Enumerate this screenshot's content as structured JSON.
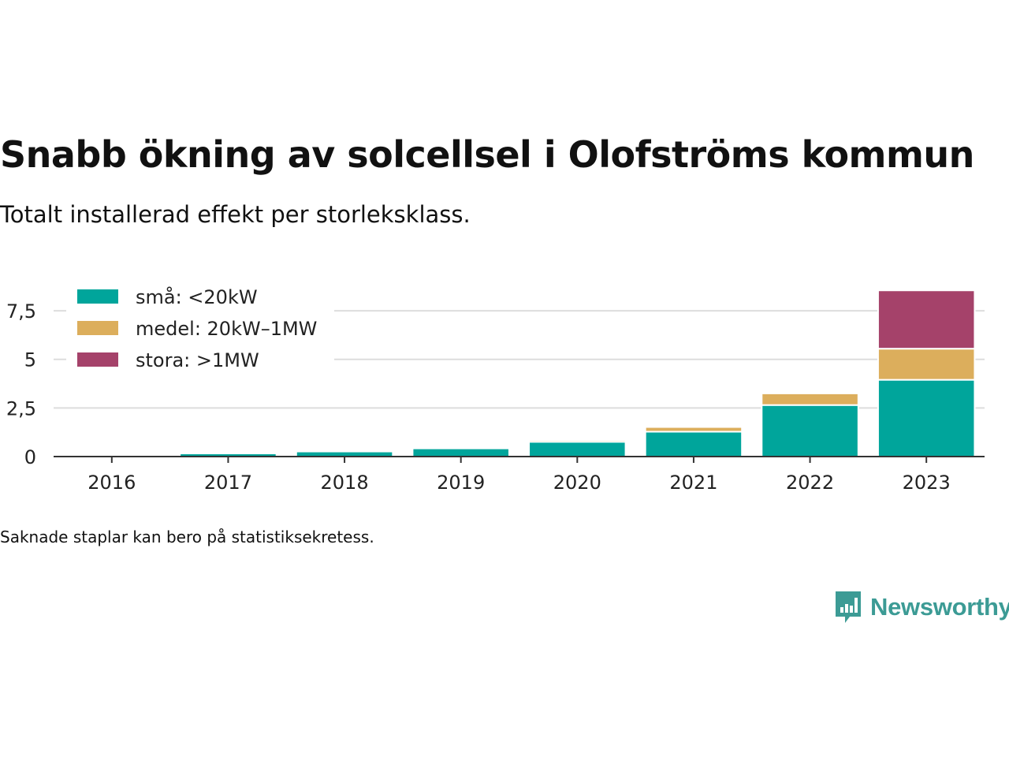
{
  "title": "Snabb ökning av solcellsel i Olofströms kommun",
  "subtitle": "Totalt installerad effekt per storleksklass.",
  "footnote": "Saknade staplar kan bero på statistiksekretess.",
  "brand": {
    "name": "Newsworthy",
    "icon": "chart-speech-bubble-icon",
    "color": "#3c9b95"
  },
  "chart_data": {
    "type": "bar",
    "stacked": true,
    "categories": [
      "2016",
      "2017",
      "2018",
      "2019",
      "2020",
      "2021",
      "2022",
      "2023"
    ],
    "series": [
      {
        "name": "små: <20kW",
        "color": "#00a59b",
        "values": [
          0.08,
          0.16,
          0.26,
          0.42,
          0.76,
          1.28,
          2.65,
          3.95
        ]
      },
      {
        "name": "medel: 20kW–1MW",
        "color": "#dcae5c",
        "values": [
          0,
          0,
          0,
          0,
          0.09,
          0.24,
          0.6,
          1.6
        ]
      },
      {
        "name": "stora: >1MW",
        "color": "#a5426a",
        "values": [
          0,
          0,
          0,
          0,
          0,
          0,
          0,
          3.0
        ]
      }
    ],
    "y_ticks": [
      0,
      2.5,
      5,
      7.5
    ],
    "y_tick_labels": [
      "0",
      "2,5",
      "5",
      "7,5"
    ],
    "ylim": [
      0,
      8.6
    ],
    "xlabel": "",
    "ylabel": "",
    "grid": true,
    "legend_position": "top-left"
  }
}
